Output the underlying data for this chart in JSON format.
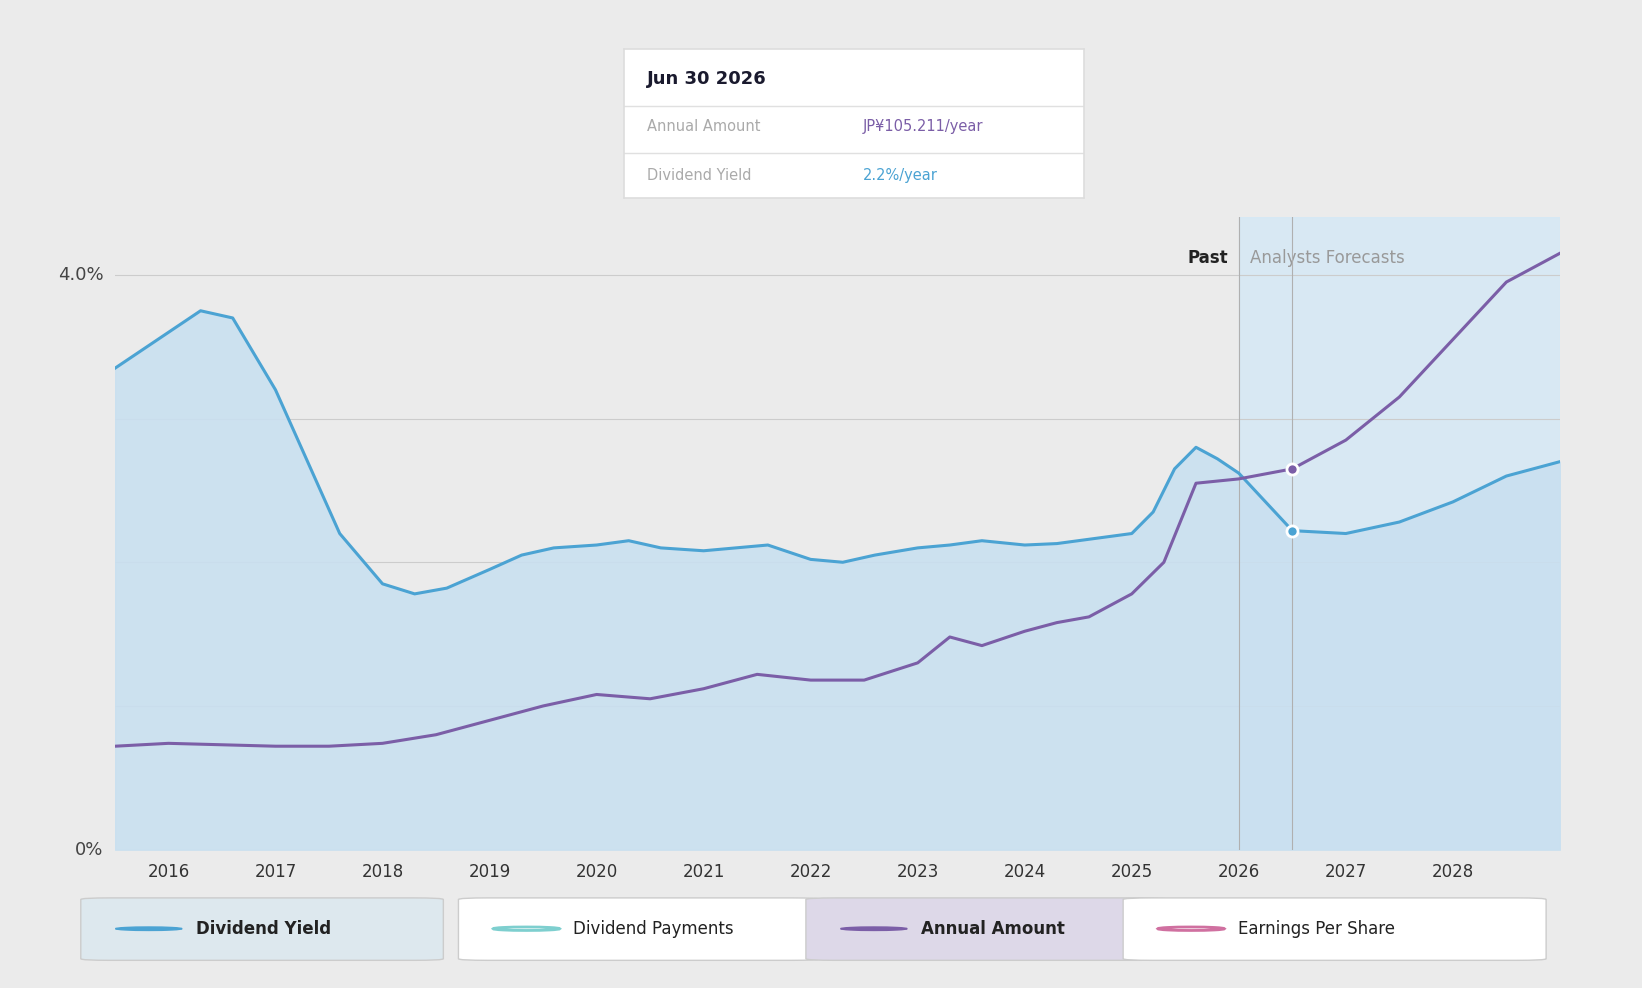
{
  "bg_color": "#ebebeb",
  "plot_bg_color": "#ebebeb",
  "ylim": [
    0,
    4.4
  ],
  "xmin": 2015.5,
  "xmax": 2029.0,
  "forecast_start": 2026.0,
  "tooltip_x": 2026.5,
  "tooltip_title": "Jun 30 2026",
  "tooltip_annual": "JP¥105.211/year",
  "tooltip_yield": "2.2%/year",
  "dividend_yield_color": "#4BA3D3",
  "annual_amount_color": "#7B5EA7",
  "fill_color": "#C9E0F0",
  "forecast_bg_color": "#D5E8F5",
  "past_label": "Past",
  "forecast_label": "Analysts Forecasts",
  "dividend_yield_x": [
    2015.5,
    2016.0,
    2016.3,
    2016.6,
    2017.0,
    2017.3,
    2017.6,
    2018.0,
    2018.3,
    2018.6,
    2019.0,
    2019.3,
    2019.6,
    2020.0,
    2020.3,
    2020.6,
    2021.0,
    2021.3,
    2021.6,
    2022.0,
    2022.3,
    2022.6,
    2023.0,
    2023.3,
    2023.6,
    2024.0,
    2024.3,
    2024.6,
    2025.0,
    2025.2,
    2025.4,
    2025.6,
    2025.8,
    2026.0,
    2026.5,
    2027.0,
    2027.5,
    2028.0,
    2028.5,
    2029.0
  ],
  "dividend_yield_y": [
    3.35,
    3.6,
    3.75,
    3.7,
    3.2,
    2.7,
    2.2,
    1.85,
    1.78,
    1.82,
    1.95,
    2.05,
    2.1,
    2.12,
    2.15,
    2.1,
    2.08,
    2.1,
    2.12,
    2.02,
    2.0,
    2.05,
    2.1,
    2.12,
    2.15,
    2.12,
    2.13,
    2.16,
    2.2,
    2.35,
    2.65,
    2.8,
    2.72,
    2.62,
    2.22,
    2.2,
    2.28,
    2.42,
    2.6,
    2.7
  ],
  "annual_amount_x": [
    2015.5,
    2016.0,
    2016.5,
    2017.0,
    2017.5,
    2018.0,
    2018.5,
    2019.0,
    2019.5,
    2020.0,
    2020.5,
    2021.0,
    2021.5,
    2022.0,
    2022.5,
    2023.0,
    2023.3,
    2023.6,
    2024.0,
    2024.3,
    2024.6,
    2025.0,
    2025.3,
    2025.6,
    2026.0,
    2026.5,
    2027.0,
    2027.5,
    2028.0,
    2028.5,
    2029.0
  ],
  "annual_amount_y": [
    0.72,
    0.74,
    0.73,
    0.72,
    0.72,
    0.74,
    0.8,
    0.9,
    1.0,
    1.08,
    1.05,
    1.12,
    1.22,
    1.18,
    1.18,
    1.3,
    1.48,
    1.42,
    1.52,
    1.58,
    1.62,
    1.78,
    2.0,
    2.55,
    2.58,
    2.65,
    2.85,
    3.15,
    3.55,
    3.95,
    4.15
  ],
  "legend_items": [
    {
      "label": "Dividend Yield",
      "color": "#4BA3D3",
      "filled": true,
      "bg": "#dde8ee"
    },
    {
      "label": "Dividend Payments",
      "color": "#7ECFCF",
      "filled": false,
      "bg": "#ffffff"
    },
    {
      "label": "Annual Amount",
      "color": "#7B5EA7",
      "filled": true,
      "bg": "#ddd8e8"
    },
    {
      "label": "Earnings Per Share",
      "color": "#D070A0",
      "filled": false,
      "bg": "#ffffff"
    }
  ]
}
